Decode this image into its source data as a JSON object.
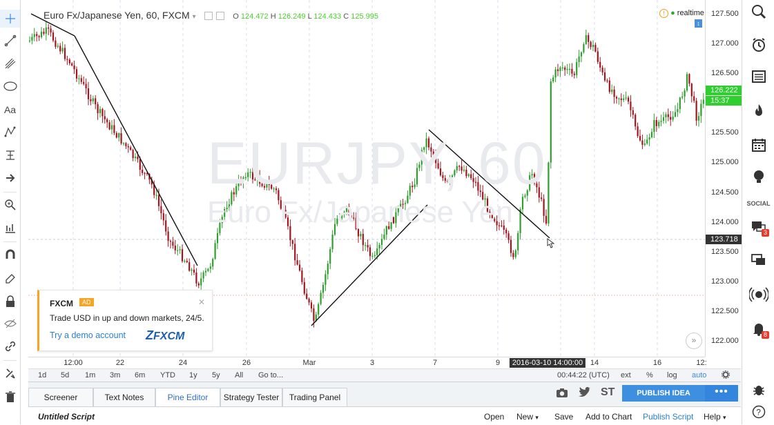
{
  "header": {
    "symbol_title": "Euro Fx/Japanese Yen, 60, FXCM",
    "o_label": "O",
    "o_value": "124.472",
    "h_label": "H",
    "h_value": "126.249",
    "l_label": "L",
    "l_value": "124.433",
    "c_label": "C",
    "c_value": "125.995",
    "realtime_label": "realtime"
  },
  "watermark": {
    "line1": "EURJPY, 60",
    "line2": "Euro Fx/Japanese Yen"
  },
  "price_axis": {
    "labels": [
      "127.500",
      "127.000",
      "126.500",
      "126.000",
      "125.500",
      "125.000",
      "124.500",
      "124.000",
      "123.500",
      "123.000",
      "122.500",
      "122.000"
    ],
    "current_price": "126.222",
    "countdown": "15:37",
    "cursor_price": "123.718",
    "current_color": "#2fcf2f",
    "cursor_color": "#333333"
  },
  "time_axis": {
    "labels": [
      "12:00",
      "22",
      "24",
      "26",
      "Mar",
      "3",
      "7",
      "9",
      "14",
      "16",
      "12:"
    ],
    "cursor_label": "2016-03-10 14:00:00"
  },
  "range_bar": {
    "ranges": [
      "1d",
      "5d",
      "1m",
      "3m",
      "6m",
      "YTD",
      "1y",
      "5y",
      "All"
    ],
    "goto": "Go to...",
    "clock": "00:44:22 (UTC)",
    "ext": "ext",
    "percent": "%",
    "log": "log",
    "auto": "auto"
  },
  "panel_tabs": [
    "Screener",
    "Text Notes",
    "Pine Editor",
    "Strategy Tester",
    "Trading Panel"
  ],
  "panel_actions": {
    "st_label": "ST",
    "publish": "PUBLISH IDEA",
    "more": "•••"
  },
  "editor": {
    "script_name": "Untitled Script",
    "open": "Open",
    "new": "New",
    "save": "Save",
    "add_to_chart": "Add to Chart",
    "publish_script": "Publish Script",
    "help": "Help"
  },
  "ad": {
    "brand": "FXCM",
    "badge": "AD",
    "text": "Trade USD in up and down markets, 24/5.",
    "cta": "Try a demo account",
    "logo_text": "FXCM"
  },
  "right_toolbar": {
    "social_label": "SOCIAL",
    "badge_chat": "3",
    "badge_alerts": "8"
  },
  "colors": {
    "up_candle": "#2e9e2e",
    "down_candle": "#a3141e",
    "accent": "#3f8fe0",
    "ad_border": "#f7a526"
  }
}
